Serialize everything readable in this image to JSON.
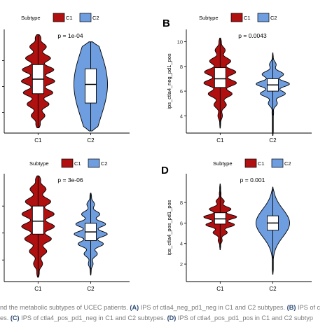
{
  "colors": {
    "C1": "#b01010",
    "C2": "#6e9de0",
    "box": "#ffffff",
    "outline": "#000000"
  },
  "legend_title": "Subtype",
  "caption": {
    "line1": "nd the metabolic subtypes of UCEC patients.",
    "line1_b1": "(A)",
    "line1_t1": "IPS of ctla4_neg_pd1_neg in C1 and C2 subtypes.",
    "line1_b2": "(B)",
    "line1_t2": "IPS of c",
    "line2": "es.",
    "line2_b1": "(C)",
    "line2_t1": "IPS of ctla4_pos_pd1_neg in C1 and C2 subtypes.",
    "line2_b2": "(D)",
    "line2_t2": "IPS of ctla4_pos_pd1_pos in C1 and C2 subtyp"
  },
  "chart_data": [
    {
      "panel": "A",
      "letter": "",
      "type": "violin",
      "categories": [
        "C1",
        "C2"
      ],
      "legend": [
        "C1",
        "C2"
      ],
      "ylabel": "",
      "yticks": [],
      "annotation": "p = 1e-04",
      "series": [
        {
          "name": "C1",
          "median": 0.52,
          "q1": 0.38,
          "q3": 0.66,
          "min": 0.05,
          "max": 0.95,
          "shape": "bumpy"
        },
        {
          "name": "C2",
          "median": 0.47,
          "q1": 0.29,
          "q3": 0.62,
          "min": 0.02,
          "max": 0.88,
          "shape": "smooth"
        }
      ]
    },
    {
      "panel": "B",
      "letter": "B",
      "type": "violin",
      "categories": [
        "C1",
        "C2"
      ],
      "legend": [
        "C1",
        "C2"
      ],
      "ylabel": "ips_ctla4_neg_pd1_pos",
      "yticks": [
        4,
        6,
        8,
        10
      ],
      "ylim": [
        2.6,
        11.0
      ],
      "annotation": "p = 0.0043",
      "series": [
        {
          "name": "C1",
          "median": 7.0,
          "q1": 6.3,
          "q3": 7.9,
          "min": 3.0,
          "max": 10.3,
          "shape": "bumpy"
        },
        {
          "name": "C2",
          "median": 6.5,
          "q1": 6.0,
          "q3": 7.0,
          "min": 2.4,
          "max": 9.1,
          "shape": "bumpy"
        }
      ]
    },
    {
      "panel": "C",
      "letter": "",
      "type": "violin",
      "categories": [
        "C1",
        "C2"
      ],
      "legend": [
        "C1",
        "C2"
      ],
      "ylabel": "",
      "yticks": [],
      "annotation": "p = 3e-06",
      "series": [
        {
          "name": "C1",
          "median": 0.56,
          "q1": 0.44,
          "q3": 0.7,
          "min": 0.04,
          "max": 0.98,
          "shape": "bumpy"
        },
        {
          "name": "C2",
          "median": 0.46,
          "q1": 0.38,
          "q3": 0.54,
          "min": 0.06,
          "max": 0.82,
          "shape": "bumpy"
        }
      ]
    },
    {
      "panel": "D",
      "letter": "D",
      "type": "violin",
      "categories": [
        "C1",
        "C2"
      ],
      "legend": [
        "C1",
        "C2"
      ],
      "ylabel": "ips_ctla4_pos_pd1_pos",
      "yticks": [
        2,
        4,
        6,
        8
      ],
      "ylim": [
        0.3,
        10.8
      ],
      "annotation": "p = 0.001",
      "series": [
        {
          "name": "C1",
          "median": 6.4,
          "q1": 5.9,
          "q3": 7.0,
          "min": 3.4,
          "max": 9.8,
          "shape": "bumpy"
        },
        {
          "name": "C2",
          "median": 6.0,
          "q1": 5.3,
          "q3": 6.7,
          "min": 1.0,
          "max": 9.5,
          "shape": "smooth"
        }
      ]
    }
  ]
}
